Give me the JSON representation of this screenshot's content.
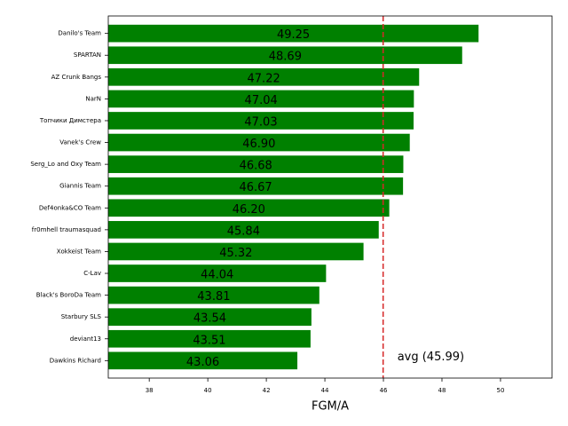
{
  "chart_data": {
    "type": "barh",
    "xlabel": "FGM/A",
    "categories": [
      "Danilo's Team",
      "SPARTAN",
      "AZ Crunk Bangs",
      "NarN",
      "Топчики Димстера",
      "Vanek's Crew",
      "Serg_Lo and Oxy Team",
      "Giannis Team",
      "Def4onka&CO Team",
      "fr0mhell traumasquad",
      "Xokkeist Team",
      "C-Lav",
      "Black's BoroDa Team",
      "Starbury SLS",
      "deviant13",
      "Dawkins Richard"
    ],
    "values": [
      49.25,
      48.69,
      47.22,
      47.04,
      47.03,
      46.9,
      46.68,
      46.67,
      46.2,
      45.84,
      45.32,
      44.04,
      43.81,
      43.54,
      43.51,
      43.06
    ],
    "value_labels": [
      "49.25",
      "48.69",
      "47.22",
      "47.04",
      "47.03",
      "46.90",
      "46.68",
      "46.67",
      "46.20",
      "45.84",
      "45.32",
      "44.04",
      "43.81",
      "43.54",
      "43.51",
      "43.06"
    ],
    "color": "#008000",
    "avg": 45.99,
    "avg_label": "avg (45.99)",
    "avg_color": "#d62728",
    "xlim": [
      36.6,
      51.76
    ],
    "xticks": [
      38,
      40,
      42,
      44,
      46,
      48,
      50
    ]
  }
}
